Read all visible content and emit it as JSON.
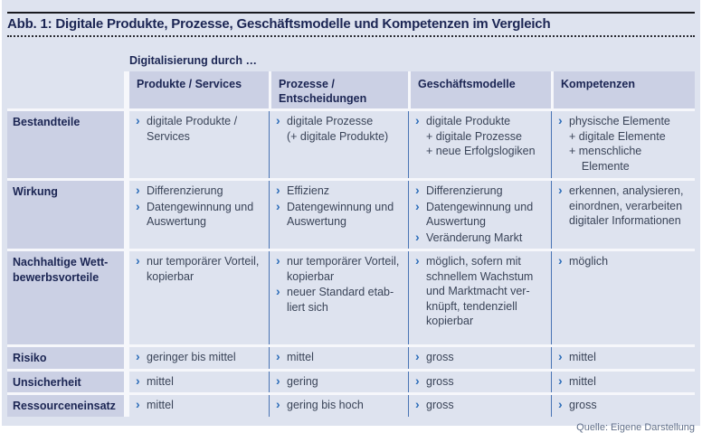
{
  "figure": {
    "title": "Abb. 1: Digitale Produkte, Prozesse, Geschäftsmodelle und Kompetenzen im Vergleich",
    "source": "Quelle: Eigene Darstellung"
  },
  "table": {
    "group_header": "Digitalisierung durch …",
    "columns": [
      "Produkte / Services",
      "Prozesse / Entscheidungen",
      "Geschäftsmodelle",
      "Kompetenzen"
    ],
    "rows": [
      {
        "label": "Bestandteile",
        "cells": [
          [
            "digitale Produkte /\nServices"
          ],
          [
            "digitale Prozesse\n(+ digitale Produkte)"
          ],
          [
            "digitale Produkte\n+ digitale Prozesse\n+ neue Erfolgslogiken"
          ],
          [
            "physische Elemente\n+ digitale Elemente\n+ menschliche\n    Elemente"
          ]
        ]
      },
      {
        "label": "Wirkung",
        "cells": [
          [
            "Differenzierung",
            "Datengewinnung und\nAuswertung"
          ],
          [
            "Effizienz",
            "Datengewinnung und\nAuswertung"
          ],
          [
            "Differenzierung",
            "Datengewinnung und\nAuswertung",
            "Veränderung Markt"
          ],
          [
            "erkennen, analysieren,\neinordnen, verarbeiten\ndigitaler Informationen"
          ]
        ]
      },
      {
        "label": "Nachhaltige Wett-\nbewerbsvorteile",
        "cells": [
          [
            "nur temporärer Vorteil,\nkopierbar"
          ],
          [
            "nur temporärer Vorteil,\nkopierbar",
            "neuer Standard etab-\nliert sich"
          ],
          [
            "möglich, sofern mit\nschnellem Wachstum\nund Marktmacht ver-\nknüpft, tendenziell\nkopierbar"
          ],
          [
            "möglich"
          ]
        ]
      },
      {
        "label": "Risiko",
        "cells": [
          [
            "geringer bis mittel"
          ],
          [
            "mittel"
          ],
          [
            "gross"
          ],
          [
            "mittel"
          ]
        ]
      },
      {
        "label": "Unsicherheit",
        "cells": [
          [
            "mittel"
          ],
          [
            "gering"
          ],
          [
            "gross"
          ],
          [
            "mittel"
          ]
        ]
      },
      {
        "label": "Ressourceneinsatz",
        "cells": [
          [
            "mittel"
          ],
          [
            "gering bis hoch"
          ],
          [
            "gross"
          ],
          [
            "gross"
          ]
        ]
      }
    ],
    "bullet_glyph": "›",
    "colors": {
      "panel_bg": "#dee3ef",
      "header_cell_bg": "#cbd0e4",
      "heading_text": "#1b2553",
      "body_text": "#3a4458",
      "accent_blue": "#2b6cb9",
      "separator_blue": "#4a74b4"
    }
  }
}
